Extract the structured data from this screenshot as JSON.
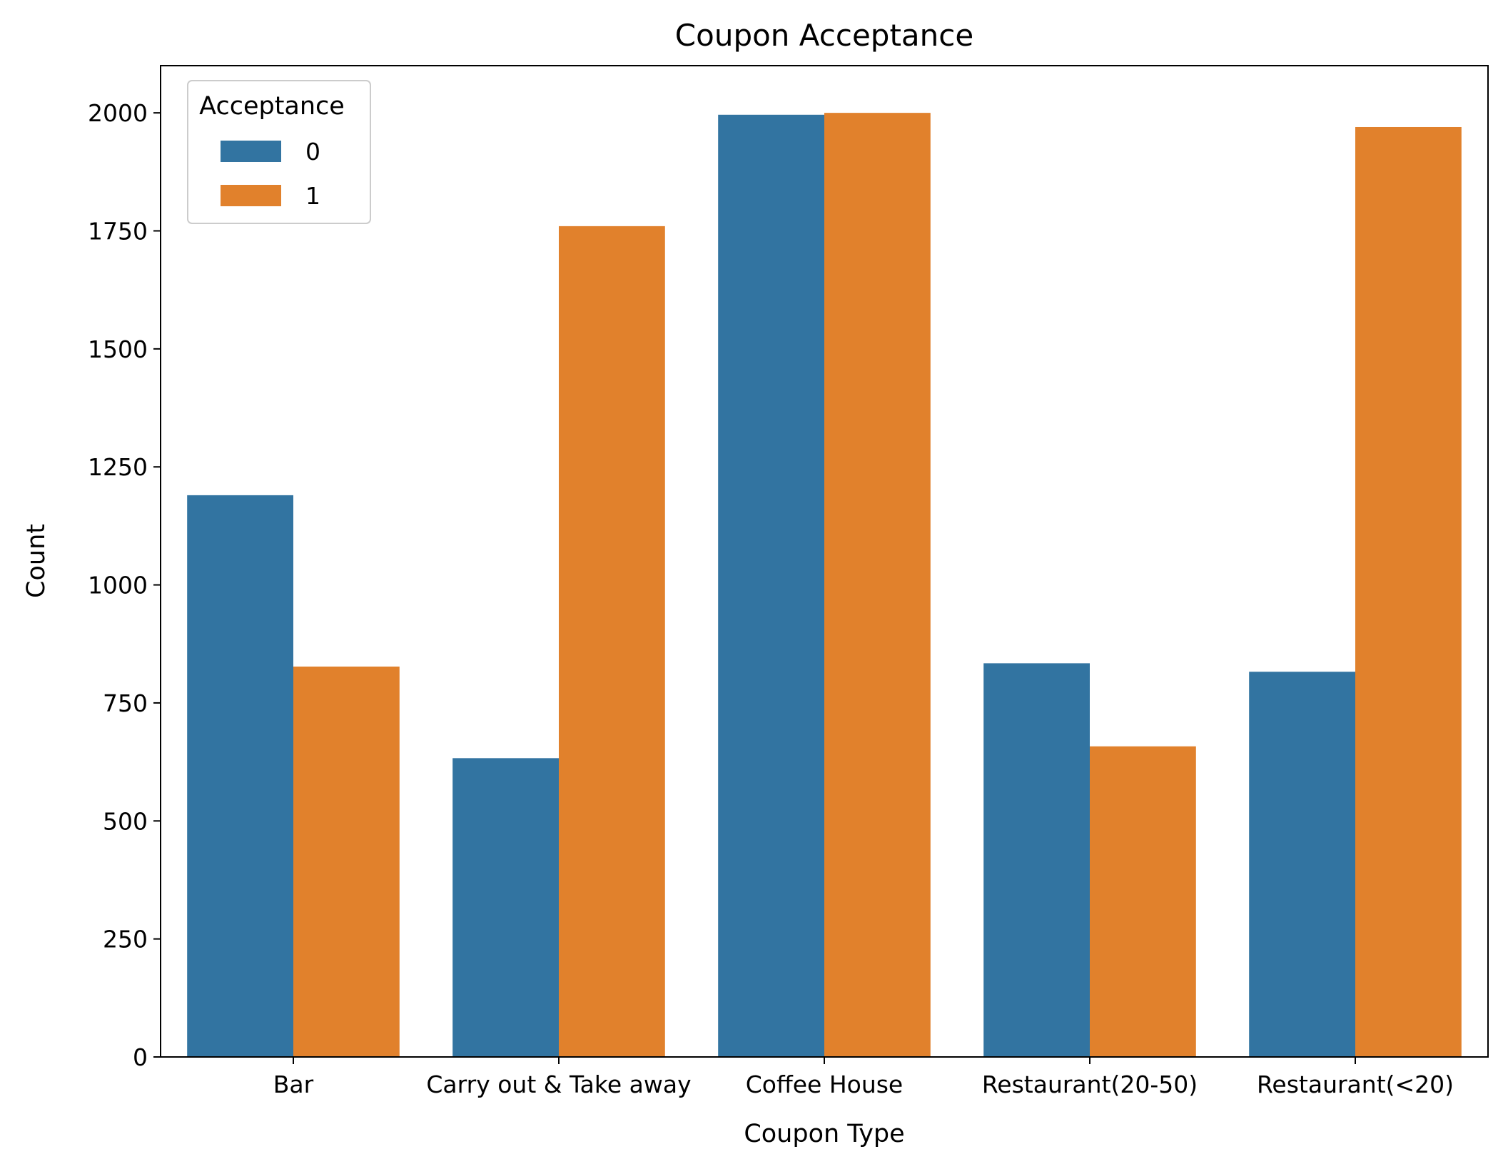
{
  "chart_data": {
    "type": "bar",
    "title": "Coupon Acceptance",
    "xlabel": "Coupon Type",
    "ylabel": "Count",
    "categories": [
      "Bar",
      "Carry out & Take away",
      "Coffee House",
      "Restaurant(20-50)",
      "Restaurant(<20)"
    ],
    "series": [
      {
        "name": "0",
        "color": "#3274a1",
        "values": [
          1190,
          633,
          1996,
          834,
          816
        ]
      },
      {
        "name": "1",
        "color": "#e1812c",
        "values": [
          827,
          1760,
          2000,
          658,
          1970
        ]
      }
    ],
    "ylim": [
      0,
      2100
    ],
    "yticks": [
      "0",
      "250",
      "500",
      "750",
      "1000",
      "1250",
      "1500",
      "1750",
      "2000"
    ],
    "grid": false,
    "legend": {
      "title": "Acceptance",
      "placement": "top-left"
    }
  }
}
